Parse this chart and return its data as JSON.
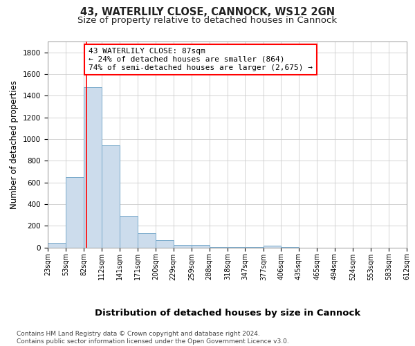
{
  "title1": "43, WATERLILY CLOSE, CANNOCK, WS12 2GN",
  "title2": "Size of property relative to detached houses in Cannock",
  "xlabel": "Distribution of detached houses by size in Cannock",
  "ylabel": "Number of detached properties",
  "bin_edges": [
    23,
    53,
    82,
    112,
    141,
    171,
    200,
    229,
    259,
    288,
    318,
    347,
    377,
    406,
    435,
    465,
    494,
    524,
    553,
    583,
    612
  ],
  "bar_heights": [
    40,
    650,
    1480,
    940,
    290,
    130,
    65,
    25,
    20,
    5,
    5,
    5,
    15,
    2,
    0,
    0,
    0,
    0,
    0,
    0
  ],
  "bar_color": "#ccdcec",
  "bar_edgecolor": "#7aaacb",
  "red_line_x": 87,
  "annotation_text": "43 WATERLILY CLOSE: 87sqm\n← 24% of detached houses are smaller (864)\n74% of semi-detached houses are larger (2,675) →",
  "annotation_box_color": "white",
  "annotation_box_edgecolor": "red",
  "ylim": [
    0,
    1900
  ],
  "yticks": [
    0,
    200,
    400,
    600,
    800,
    1000,
    1200,
    1400,
    1600,
    1800
  ],
  "background_color": "white",
  "plot_background": "white",
  "grid_color": "#cccccc",
  "footer_text": "Contains HM Land Registry data © Crown copyright and database right 2024.\nContains public sector information licensed under the Open Government Licence v3.0.",
  "title1_fontsize": 10.5,
  "title2_fontsize": 9.5,
  "xlabel_fontsize": 9.5,
  "ylabel_fontsize": 8.5,
  "tick_fontsize": 7.5,
  "annotation_fontsize": 8,
  "footer_fontsize": 6.5
}
